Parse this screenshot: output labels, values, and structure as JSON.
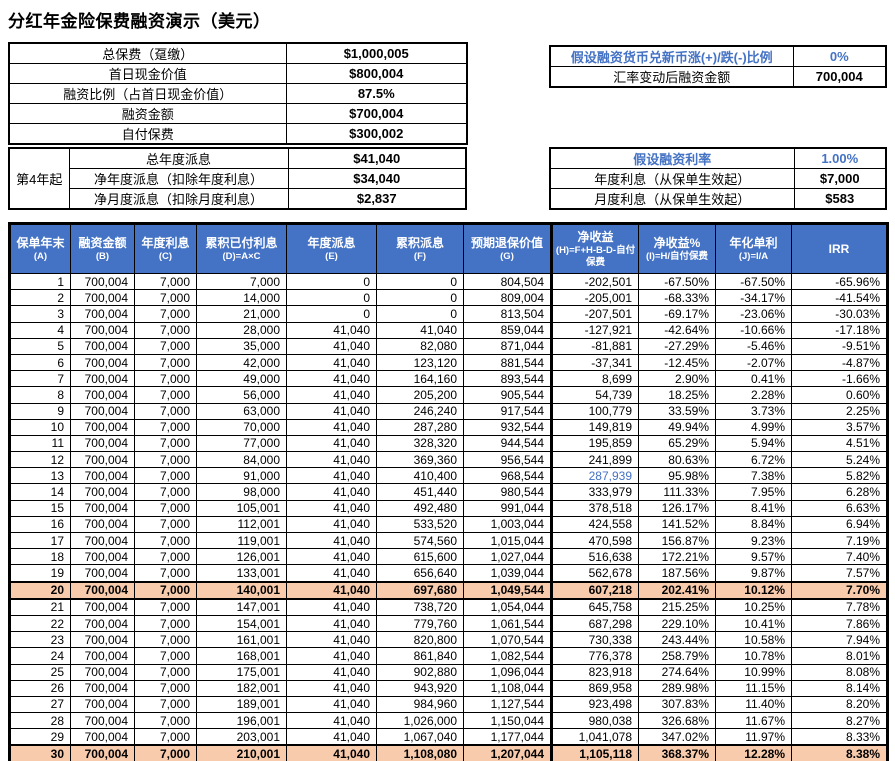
{
  "title": "分红年金险保费融资演示（美元）",
  "colors": {
    "header_bg": "#4472C4",
    "header_text": "#FFFFFF",
    "highlight_bg": "#F8CBAD",
    "accent_text": "#4472C4",
    "border": "#000000"
  },
  "summary_table": {
    "rows": [
      {
        "label": "总保费（趸缴）",
        "value": "$1,000,005",
        "accent": false
      },
      {
        "label": "首日现金价值",
        "value": "$800,004",
        "accent": false
      },
      {
        "label": "融资比例（占首日现金价值）",
        "value": "87.5%",
        "accent": false
      },
      {
        "label": "融资金额",
        "value": "$700,004",
        "accent": false
      },
      {
        "label": "自付保费",
        "value": "$300,002",
        "accent": false
      }
    ]
  },
  "fx_table": {
    "rows": [
      {
        "label": "假设融资货币兑新币涨(+)/跌(-)比例",
        "value": "0%",
        "accent": true
      },
      {
        "label": "汇率变动后融资金额",
        "value": "700,004",
        "accent": false
      }
    ]
  },
  "dividend_table": {
    "side_label": "第4年起",
    "rows": [
      {
        "label": "总年度派息",
        "value": "$41,040",
        "accent": false
      },
      {
        "label": "净年度派息（扣除年度利息）",
        "value": "$34,040",
        "accent": false
      },
      {
        "label": "净月度派息（扣除月度利息）",
        "value": "$2,837",
        "accent": false
      }
    ]
  },
  "rate_table": {
    "rows": [
      {
        "label": "假设融资利率",
        "value": "1.00%",
        "accent": true
      },
      {
        "label": "年度利息（从保单生效起）",
        "value": "$7,000",
        "accent": false
      },
      {
        "label": "月度利息（从保单生效起）",
        "value": "$583",
        "accent": false
      }
    ]
  },
  "main_table": {
    "headers": [
      {
        "title": "保单年末",
        "formula": "(A)"
      },
      {
        "title": "融资金额",
        "formula": "(B)"
      },
      {
        "title": "年度利息",
        "formula": "(C)"
      },
      {
        "title": "累积已付利息",
        "formula": "(D)=A×C"
      },
      {
        "title": "年度派息",
        "formula": "(E)"
      },
      {
        "title": "累积派息",
        "formula": "(F)"
      },
      {
        "title": "预期退保价值",
        "formula": "(G)"
      },
      {
        "title": "净收益",
        "formula": "(H)=F+H-B-D-自付保费"
      },
      {
        "title": "净收益%",
        "formula": "(I)=H/自付保费"
      },
      {
        "title": "年化单利",
        "formula": "(J)=I/A"
      },
      {
        "title": "IRR",
        "formula": ""
      }
    ],
    "highlight_rows": [
      20,
      30
    ],
    "accent_cells": [
      {
        "row": 13,
        "col": 7
      }
    ],
    "rows": [
      [
        "1",
        "700,004",
        "7,000",
        "7,000",
        "0",
        "0",
        "804,504",
        "-202,501",
        "-67.50%",
        "-67.50%",
        "-65.96%"
      ],
      [
        "2",
        "700,004",
        "7,000",
        "14,000",
        "0",
        "0",
        "809,004",
        "-205,001",
        "-68.33%",
        "-34.17%",
        "-41.54%"
      ],
      [
        "3",
        "700,004",
        "7,000",
        "21,000",
        "0",
        "0",
        "813,504",
        "-207,501",
        "-69.17%",
        "-23.06%",
        "-30.03%"
      ],
      [
        "4",
        "700,004",
        "7,000",
        "28,000",
        "41,040",
        "41,040",
        "859,044",
        "-127,921",
        "-42.64%",
        "-10.66%",
        "-17.18%"
      ],
      [
        "5",
        "700,004",
        "7,000",
        "35,000",
        "41,040",
        "82,080",
        "871,044",
        "-81,881",
        "-27.29%",
        "-5.46%",
        "-9.51%"
      ],
      [
        "6",
        "700,004",
        "7,000",
        "42,000",
        "41,040",
        "123,120",
        "881,544",
        "-37,341",
        "-12.45%",
        "-2.07%",
        "-4.87%"
      ],
      [
        "7",
        "700,004",
        "7,000",
        "49,000",
        "41,040",
        "164,160",
        "893,544",
        "8,699",
        "2.90%",
        "0.41%",
        "-1.66%"
      ],
      [
        "8",
        "700,004",
        "7,000",
        "56,000",
        "41,040",
        "205,200",
        "905,544",
        "54,739",
        "18.25%",
        "2.28%",
        "0.60%"
      ],
      [
        "9",
        "700,004",
        "7,000",
        "63,000",
        "41,040",
        "246,240",
        "917,544",
        "100,779",
        "33.59%",
        "3.73%",
        "2.25%"
      ],
      [
        "10",
        "700,004",
        "7,000",
        "70,000",
        "41,040",
        "287,280",
        "932,544",
        "149,819",
        "49.94%",
        "4.99%",
        "3.57%"
      ],
      [
        "11",
        "700,004",
        "7,000",
        "77,000",
        "41,040",
        "328,320",
        "944,544",
        "195,859",
        "65.29%",
        "5.94%",
        "4.51%"
      ],
      [
        "12",
        "700,004",
        "7,000",
        "84,000",
        "41,040",
        "369,360",
        "956,544",
        "241,899",
        "80.63%",
        "6.72%",
        "5.24%"
      ],
      [
        "13",
        "700,004",
        "7,000",
        "91,000",
        "41,040",
        "410,400",
        "968,544",
        "287,939",
        "95.98%",
        "7.38%",
        "5.82%"
      ],
      [
        "14",
        "700,004",
        "7,000",
        "98,000",
        "41,040",
        "451,440",
        "980,544",
        "333,979",
        "111.33%",
        "7.95%",
        "6.28%"
      ],
      [
        "15",
        "700,004",
        "7,000",
        "105,001",
        "41,040",
        "492,480",
        "991,044",
        "378,518",
        "126.17%",
        "8.41%",
        "6.63%"
      ],
      [
        "16",
        "700,004",
        "7,000",
        "112,001",
        "41,040",
        "533,520",
        "1,003,044",
        "424,558",
        "141.52%",
        "8.84%",
        "6.94%"
      ],
      [
        "17",
        "700,004",
        "7,000",
        "119,001",
        "41,040",
        "574,560",
        "1,015,044",
        "470,598",
        "156.87%",
        "9.23%",
        "7.19%"
      ],
      [
        "18",
        "700,004",
        "7,000",
        "126,001",
        "41,040",
        "615,600",
        "1,027,044",
        "516,638",
        "172.21%",
        "9.57%",
        "7.40%"
      ],
      [
        "19",
        "700,004",
        "7,000",
        "133,001",
        "41,040",
        "656,640",
        "1,039,044",
        "562,678",
        "187.56%",
        "9.87%",
        "7.57%"
      ],
      [
        "20",
        "700,004",
        "7,000",
        "140,001",
        "41,040",
        "697,680",
        "1,049,544",
        "607,218",
        "202.41%",
        "10.12%",
        "7.70%"
      ],
      [
        "21",
        "700,004",
        "7,000",
        "147,001",
        "41,040",
        "738,720",
        "1,054,044",
        "645,758",
        "215.25%",
        "10.25%",
        "7.78%"
      ],
      [
        "22",
        "700,004",
        "7,000",
        "154,001",
        "41,040",
        "779,760",
        "1,061,544",
        "687,298",
        "229.10%",
        "10.41%",
        "7.86%"
      ],
      [
        "23",
        "700,004",
        "7,000",
        "161,001",
        "41,040",
        "820,800",
        "1,070,544",
        "730,338",
        "243.44%",
        "10.58%",
        "7.94%"
      ],
      [
        "24",
        "700,004",
        "7,000",
        "168,001",
        "41,040",
        "861,840",
        "1,082,544",
        "776,378",
        "258.79%",
        "10.78%",
        "8.01%"
      ],
      [
        "25",
        "700,004",
        "7,000",
        "175,001",
        "41,040",
        "902,880",
        "1,096,044",
        "823,918",
        "274.64%",
        "10.99%",
        "8.08%"
      ],
      [
        "26",
        "700,004",
        "7,000",
        "182,001",
        "41,040",
        "943,920",
        "1,108,044",
        "869,958",
        "289.98%",
        "11.15%",
        "8.14%"
      ],
      [
        "27",
        "700,004",
        "7,000",
        "189,001",
        "41,040",
        "984,960",
        "1,127,544",
        "923,498",
        "307.83%",
        "11.40%",
        "8.20%"
      ],
      [
        "28",
        "700,004",
        "7,000",
        "196,001",
        "41,040",
        "1,026,000",
        "1,150,044",
        "980,038",
        "326.68%",
        "11.67%",
        "8.27%"
      ],
      [
        "29",
        "700,004",
        "7,000",
        "203,001",
        "41,040",
        "1,067,040",
        "1,177,044",
        "1,041,078",
        "347.02%",
        "11.97%",
        "8.33%"
      ],
      [
        "30",
        "700,004",
        "7,000",
        "210,001",
        "41,040",
        "1,108,080",
        "1,207,044",
        "1,105,118",
        "368.37%",
        "12.28%",
        "8.38%"
      ]
    ]
  }
}
